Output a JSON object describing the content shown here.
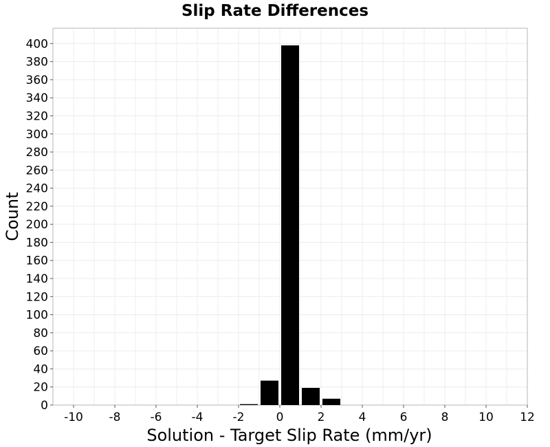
{
  "chart_data": {
    "type": "bar",
    "title": "Slip Rate Differences",
    "xlabel": "Solution - Target Slip Rate (mm/yr)",
    "ylabel": "Count",
    "xlim": [
      -11,
      12
    ],
    "ylim": [
      0,
      417
    ],
    "x_ticks": [
      -10,
      -8,
      -6,
      -4,
      -2,
      0,
      2,
      4,
      6,
      8,
      10,
      12
    ],
    "y_ticks": [
      0,
      20,
      40,
      60,
      80,
      100,
      120,
      140,
      160,
      180,
      200,
      220,
      240,
      260,
      280,
      300,
      320,
      340,
      360,
      380,
      400
    ],
    "bin_width": 1,
    "bins": [
      {
        "x": -1.5,
        "value": 1
      },
      {
        "x": -0.5,
        "value": 27
      },
      {
        "x": 0.5,
        "value": 398
      },
      {
        "x": 1.5,
        "value": 19
      },
      {
        "x": 2.5,
        "value": 7
      }
    ],
    "grid": true,
    "colors": {
      "bar": "#000000",
      "grid": "#ececec",
      "frame": "#b5b5b5"
    }
  }
}
